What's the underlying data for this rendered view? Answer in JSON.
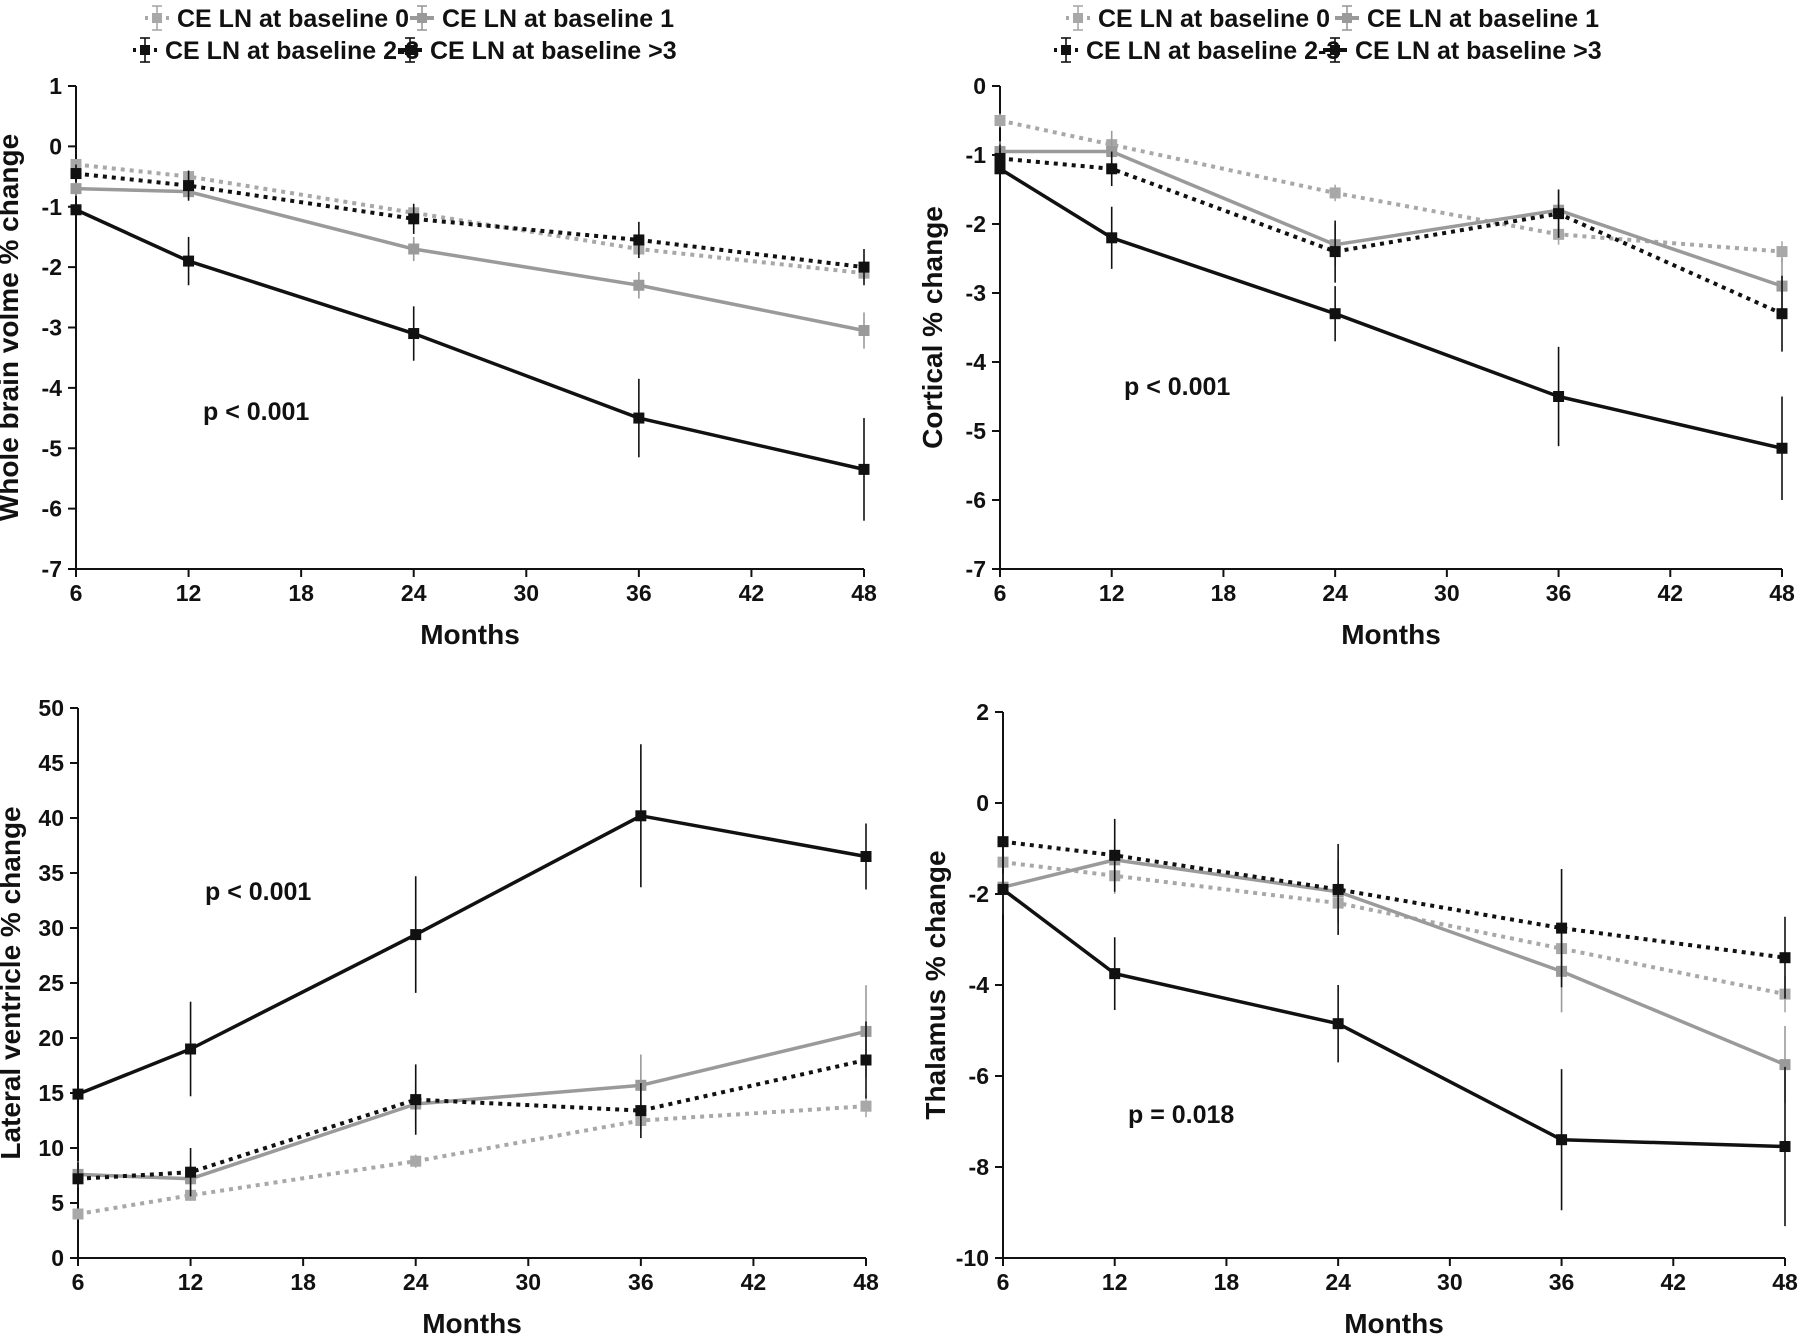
{
  "colors": {
    "light_gray": "#a8a8a8",
    "mid_gray": "#9a9a9a",
    "black": "#111111"
  },
  "chart_data": [
    {
      "type": "line",
      "ylabel": "Whole brain volme % change",
      "xlabel": "Months",
      "annotation": "p < 0.001",
      "xlim": [
        6,
        48
      ],
      "ylim": [
        -7,
        1
      ],
      "x_ticks": [
        6,
        12,
        18,
        24,
        30,
        36,
        42,
        48
      ],
      "y_ticks": [
        -7,
        -6,
        -5,
        -4,
        -3,
        -2,
        -1,
        0,
        1
      ],
      "legend": [
        "CE LN at baseline 0",
        "CE LN at baseline 1",
        "CE LN at baseline 2-3",
        "CE LN at baseline >3"
      ],
      "legend_position": "top",
      "series": [
        {
          "name": "CE LN at baseline 0",
          "style": "dotted",
          "color": "#a8a8a8",
          "x": [
            6,
            12,
            24,
            36,
            48
          ],
          "values": [
            -0.3,
            -0.5,
            -1.1,
            -1.7,
            -2.1
          ],
          "err": [
            0.06,
            0.05,
            0.1,
            0.1,
            0.1
          ]
        },
        {
          "name": "CE LN at baseline 1",
          "style": "solid",
          "color": "#9a9a9a",
          "x": [
            6,
            12,
            24,
            36,
            48
          ],
          "values": [
            -0.7,
            -0.75,
            -1.7,
            -2.3,
            -3.05
          ],
          "err": [
            0.12,
            0.12,
            0.2,
            0.22,
            0.3
          ]
        },
        {
          "name": "CE LN at baseline 2-3",
          "style": "dotted",
          "color": "#111111",
          "x": [
            6,
            12,
            24,
            36,
            48
          ],
          "values": [
            -0.45,
            -0.65,
            -1.2,
            -1.55,
            -2.0
          ],
          "err": [
            0.15,
            0.25,
            0.25,
            0.3,
            0.3
          ]
        },
        {
          "name": "CE LN at baseline >3",
          "style": "solid",
          "color": "#111111",
          "x": [
            6,
            12,
            24,
            36,
            48
          ],
          "values": [
            -1.05,
            -1.9,
            -3.1,
            -4.5,
            -5.35
          ],
          "err": [
            0.2,
            0.4,
            0.45,
            0.65,
            0.85
          ]
        }
      ]
    },
    {
      "type": "line",
      "ylabel": "Cortical % change",
      "xlabel": "Months",
      "annotation": "p < 0.001",
      "xlim": [
        6,
        48
      ],
      "ylim": [
        -7,
        0
      ],
      "x_ticks": [
        6,
        12,
        18,
        24,
        30,
        36,
        42,
        48
      ],
      "y_ticks": [
        -7,
        -6,
        -5,
        -4,
        -3,
        -2,
        -1,
        0
      ],
      "legend": [
        "CE LN at baseline 0",
        "CE LN at baseline 1",
        "CE LN at baseline 2-3",
        "CE LN at baseline >3"
      ],
      "legend_position": "top",
      "series": [
        {
          "name": "CE LN at baseline 0",
          "style": "dotted",
          "color": "#a8a8a8",
          "x": [
            6,
            12,
            24,
            36,
            48
          ],
          "values": [
            -0.5,
            -0.85,
            -1.55,
            -2.15,
            -2.4
          ],
          "err": [
            0.1,
            0.1,
            0.12,
            0.15,
            0.15
          ]
        },
        {
          "name": "CE LN at baseline 1",
          "style": "solid",
          "color": "#9a9a9a",
          "x": [
            6,
            12,
            24,
            36,
            48
          ],
          "values": [
            -0.95,
            -0.95,
            -2.3,
            -1.8,
            -2.9
          ],
          "err": [
            0.15,
            0.3,
            0.3,
            0.3,
            0.4
          ]
        },
        {
          "name": "CE LN at baseline 2-3",
          "style": "dotted",
          "color": "#111111",
          "x": [
            6,
            12,
            24,
            36,
            48
          ],
          "values": [
            -1.05,
            -1.2,
            -2.4,
            -1.85,
            -3.3
          ],
          "err": [
            0.2,
            0.25,
            0.45,
            0.35,
            0.55
          ]
        },
        {
          "name": "CE LN at baseline >3",
          "style": "solid",
          "color": "#111111",
          "x": [
            6,
            12,
            24,
            36,
            48
          ],
          "values": [
            -1.2,
            -2.2,
            -3.3,
            -4.5,
            -5.25
          ],
          "err": [
            0.3,
            0.45,
            0.4,
            0.72,
            0.75
          ]
        }
      ]
    },
    {
      "type": "line",
      "ylabel": "Lateral ventricle % change",
      "xlabel": "Months",
      "annotation": "p < 0.001",
      "xlim": [
        6,
        48
      ],
      "ylim": [
        0,
        50
      ],
      "x_ticks": [
        6,
        12,
        18,
        24,
        30,
        36,
        42,
        48
      ],
      "y_ticks": [
        0,
        5,
        10,
        15,
        20,
        25,
        30,
        35,
        40,
        45,
        50
      ],
      "series": [
        {
          "name": "CE LN at baseline 0",
          "style": "dotted",
          "color": "#a8a8a8",
          "x": [
            6,
            12,
            24,
            36,
            48
          ],
          "values": [
            4.0,
            5.7,
            8.8,
            12.5,
            13.8
          ],
          "err": [
            0.4,
            0.5,
            0.6,
            0.9,
            1.0
          ]
        },
        {
          "name": "CE LN at baseline 1",
          "style": "solid",
          "color": "#9a9a9a",
          "x": [
            6,
            12,
            24,
            36,
            48
          ],
          "values": [
            7.6,
            7.2,
            14.0,
            15.7,
            20.6
          ],
          "err": [
            1.2,
            1.2,
            2.0,
            2.8,
            4.2
          ]
        },
        {
          "name": "CE LN at baseline 2-3",
          "style": "dotted",
          "color": "#111111",
          "x": [
            6,
            12,
            24,
            36,
            48
          ],
          "values": [
            7.2,
            7.8,
            14.4,
            13.4,
            18.0
          ],
          "err": [
            1.5,
            2.2,
            3.2,
            2.5,
            3.5
          ]
        },
        {
          "name": "CE LN at baseline >3",
          "style": "solid",
          "color": "#111111",
          "x": [
            6,
            12,
            24,
            36,
            48
          ],
          "values": [
            14.9,
            19.0,
            29.4,
            40.2,
            36.5
          ],
          "err": [
            2.7,
            4.3,
            5.3,
            6.5,
            3.0
          ]
        }
      ]
    },
    {
      "type": "line",
      "ylabel": "Thalamus % change",
      "xlabel": "Months",
      "annotation": "p = 0.018",
      "xlim": [
        6,
        48
      ],
      "ylim": [
        -10,
        2
      ],
      "x_ticks": [
        6,
        12,
        18,
        24,
        30,
        36,
        42,
        48
      ],
      "y_ticks": [
        -10,
        -8,
        -6,
        -4,
        -2,
        0,
        2
      ],
      "series": [
        {
          "name": "CE LN at baseline 0",
          "style": "dotted",
          "color": "#a8a8a8",
          "x": [
            6,
            12,
            24,
            36,
            48
          ],
          "values": [
            -1.3,
            -1.6,
            -2.2,
            -3.2,
            -4.2
          ],
          "err": [
            0.5,
            0.4,
            0.4,
            0.5,
            0.4
          ]
        },
        {
          "name": "CE LN at baseline 1",
          "style": "solid",
          "color": "#9a9a9a",
          "x": [
            6,
            12,
            24,
            36,
            48
          ],
          "values": [
            -1.85,
            -1.25,
            -1.95,
            -3.7,
            -5.75
          ],
          "err": [
            0.6,
            0.4,
            0.7,
            0.9,
            0.85
          ]
        },
        {
          "name": "CE LN at baseline 2-3",
          "style": "dotted",
          "color": "#111111",
          "x": [
            6,
            12,
            24,
            36,
            48
          ],
          "values": [
            -0.85,
            -1.15,
            -1.9,
            -2.75,
            -3.4
          ],
          "err": [
            0.7,
            0.8,
            1.0,
            1.3,
            0.9
          ]
        },
        {
          "name": "CE LN at baseline >3",
          "style": "solid",
          "color": "#111111",
          "x": [
            6,
            12,
            24,
            36,
            48
          ],
          "values": [
            -1.9,
            -3.75,
            -4.85,
            -7.4,
            -7.55
          ],
          "err": [
            1.0,
            0.8,
            0.85,
            1.55,
            1.75
          ]
        }
      ]
    }
  ]
}
